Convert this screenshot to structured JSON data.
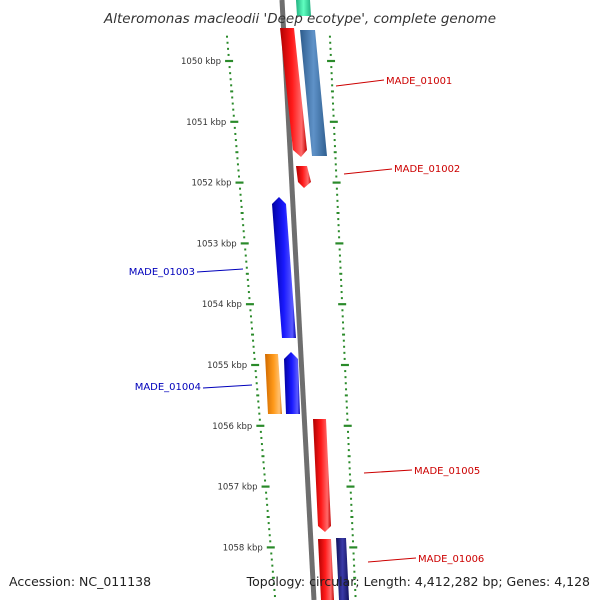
{
  "title": "Alteromonas macleodii 'Deep ecotype', complete genome",
  "footer": {
    "accession": "Accession: NC_011138",
    "summary": "Topology: circular; Length: 4,412,282 bp; Genes: 4,128"
  },
  "colors": {
    "backbone": "#7a7a7a",
    "ticks": "#2a8a2a",
    "forward_label": "#cc0000",
    "reverse_label": "#0000bb",
    "red_gene": "#ff0000",
    "steelblue_gene": "#4a7fb5",
    "blue_gene": "#0000ee",
    "orange_gene": "#ff8c00",
    "navy_gene": "#1a1a8a",
    "teal_gene": "#33e0a0"
  },
  "scale": {
    "labels": [
      {
        "kbp": 1050,
        "text": "1050 kbp"
      },
      {
        "kbp": 1051,
        "text": "1051 kbp"
      },
      {
        "kbp": 1052,
        "text": "1052 kbp"
      },
      {
        "kbp": 1053,
        "text": "1053 kbp"
      },
      {
        "kbp": 1054,
        "text": "1054 kbp"
      },
      {
        "kbp": 1055,
        "text": "1055 kbp"
      },
      {
        "kbp": 1056,
        "text": "1056 kbp"
      },
      {
        "kbp": 1057,
        "text": "1057 kbp"
      },
      {
        "kbp": 1058,
        "text": "1058 kbp"
      }
    ]
  },
  "labels": [
    {
      "text": "MADE_01001",
      "strand": "forward"
    },
    {
      "text": "MADE_01002",
      "strand": "forward"
    },
    {
      "text": "MADE_01003",
      "strand": "reverse"
    },
    {
      "text": "MADE_01004",
      "strand": "reverse"
    },
    {
      "text": "MADE_01005",
      "strand": "forward"
    },
    {
      "text": "MADE_01006",
      "strand": "forward"
    }
  ]
}
